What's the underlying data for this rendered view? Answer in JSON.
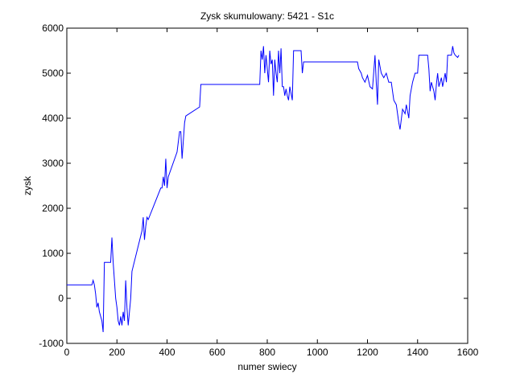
{
  "chart_data": {
    "type": "line",
    "title": "Zysk skumulowany: 5421 - S1c",
    "x_label": "numer swiecy",
    "y_label": "zysk",
    "x": [
      0,
      100,
      105,
      110,
      115,
      120,
      125,
      130,
      135,
      140,
      145,
      150,
      175,
      180,
      185,
      190,
      195,
      200,
      205,
      210,
      215,
      220,
      225,
      230,
      235,
      240,
      245,
      250,
      255,
      260,
      300,
      305,
      310,
      315,
      320,
      325,
      375,
      380,
      385,
      390,
      395,
      400,
      405,
      440,
      450,
      455,
      460,
      470,
      475,
      530,
      535,
      770,
      775,
      780,
      785,
      790,
      795,
      800,
      805,
      810,
      815,
      820,
      825,
      830,
      835,
      840,
      845,
      850,
      855,
      860,
      865,
      870,
      875,
      880,
      885,
      890,
      895,
      900,
      905,
      935,
      940,
      945,
      1160,
      1165,
      1175,
      1180,
      1190,
      1200,
      1210,
      1220,
      1230,
      1235,
      1240,
      1245,
      1255,
      1265,
      1275,
      1285,
      1295,
      1305,
      1315,
      1325,
      1330,
      1340,
      1350,
      1355,
      1365,
      1370,
      1380,
      1390,
      1400,
      1405,
      1440,
      1445,
      1450,
      1455,
      1465,
      1470,
      1475,
      1480,
      1485,
      1495,
      1500,
      1510,
      1515,
      1520,
      1535,
      1540,
      1545,
      1550,
      1560,
      1565
    ],
    "series": [
      {
        "color": "#0000ff",
        "values": [
          300,
          300,
          400,
          300,
          100,
          -200,
          -100,
          -300,
          -400,
          -500,
          -750,
          800,
          800,
          1350,
          800,
          400,
          0,
          -200,
          -500,
          -600,
          -400,
          -600,
          -300,
          -500,
          400,
          -200,
          -600,
          -300,
          0,
          600,
          1500,
          1800,
          1300,
          1600,
          1800,
          1750,
          2450,
          2450,
          2700,
          2500,
          3100,
          2450,
          2700,
          3250,
          3700,
          3700,
          3100,
          3900,
          4050,
          4250,
          4750,
          4750,
          5500,
          5300,
          5600,
          5000,
          5400,
          5100,
          4800,
          5500,
          5200,
          5300,
          4500,
          5300,
          5000,
          4800,
          5500,
          5000,
          5550,
          4700,
          4700,
          4500,
          4650,
          4500,
          4400,
          4700,
          4550,
          4400,
          5500,
          5500,
          5000,
          5250,
          5250,
          5100,
          5000,
          4900,
          4800,
          4950,
          4700,
          4650,
          5400,
          4800,
          4300,
          5300,
          5000,
          4900,
          5000,
          4800,
          4800,
          4400,
          4300,
          3900,
          3750,
          4200,
          4100,
          4300,
          4000,
          4500,
          4800,
          5000,
          5000,
          5400,
          5400,
          5100,
          4600,
          4800,
          4600,
          4400,
          4750,
          5000,
          4700,
          4900,
          4700,
          5000,
          4800,
          5400,
          5400,
          5600,
          5450,
          5400,
          5350,
          5400
        ]
      }
    ],
    "xlim": [
      0,
      1600
    ],
    "xticks": [
      0,
      200,
      400,
      600,
      800,
      1000,
      1200,
      1400,
      1600
    ],
    "ylim": [
      -1000,
      6000
    ],
    "yticks": [
      -1000,
      0,
      1000,
      2000,
      3000,
      4000,
      5000,
      6000
    ]
  }
}
